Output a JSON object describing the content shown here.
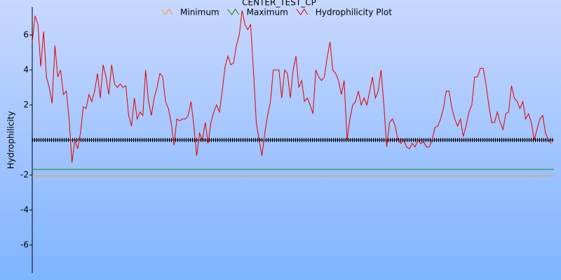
{
  "chart_data": {
    "type": "line",
    "title": "CENTER_TEST_CP",
    "y_label": "Hydrophilicity",
    "ylim": [
      -7.6,
      7.6
    ],
    "yticks": [
      -6,
      -4,
      -2,
      2,
      4,
      6
    ],
    "series": [
      {
        "name": "Minimum",
        "color": "#f0a020",
        "value": -2.05
      },
      {
        "name": "Maximum",
        "color": "#108a10",
        "value": -1.68
      },
      {
        "name": "Hydrophilicity Plot",
        "color": "#e00000",
        "values": [
          5.6,
          7.1,
          6.6,
          4.2,
          6.2,
          3.6,
          3.0,
          2.1,
          5.4,
          3.6,
          4.0,
          2.6,
          2.8,
          1.2,
          -1.3,
          0,
          -0.5,
          0.4,
          1.9,
          1.8,
          2.6,
          2.2,
          2.8,
          3.8,
          2.4,
          4.3,
          3.6,
          2.6,
          4.3,
          3.2,
          3.0,
          3.2,
          3.0,
          3.1,
          1.4,
          0.8,
          2.4,
          1.2,
          1.6,
          1.4,
          4.0,
          2.2,
          1.4,
          2.4,
          3.0,
          3.8,
          3.6,
          2.2,
          1.8,
          1.0,
          -0.3,
          1.2,
          1.1,
          1.2,
          1.2,
          1.4,
          2.2,
          0.8,
          -0.9,
          0.4,
          0,
          1.0,
          -0.2,
          1.0,
          1.6,
          2.0,
          1.6,
          2.8,
          4.2,
          4.8,
          4.3,
          4.4,
          5.4,
          6.0,
          7.4,
          6.6,
          6.3,
          6.6,
          4.0,
          1.0,
          0,
          -0.9,
          0.4,
          1.4,
          2.2,
          4.0,
          4.0,
          4.0,
          2.4,
          4.0,
          3.8,
          2.4,
          4.0,
          4.8,
          3.0,
          3.4,
          2.2,
          2.4,
          2.0,
          1.5,
          4.0,
          3.6,
          3.4,
          3.6,
          4.7,
          5.6,
          4.0,
          3.8,
          3.4,
          2.6,
          3.4,
          0,
          1.2,
          2.0,
          2.2,
          2.8,
          2.0,
          2.4,
          2.0,
          2.8,
          3.6,
          2.4,
          2.8,
          4.0,
          2.0,
          -0.4,
          1.0,
          1.2,
          0.8,
          0,
          -0.2,
          0,
          -0.4,
          -0.5,
          -0.2,
          -0.4,
          0,
          -0.2,
          -0.1,
          -0.4,
          -0.4,
          0,
          0.7,
          0.8,
          1.2,
          1.8,
          2.8,
          2.8,
          1.8,
          1.2,
          0.8,
          1.2,
          0.2,
          0.8,
          1.6,
          2.0,
          3.6,
          3.6,
          4.1,
          4.1,
          3.2,
          2.0,
          1.0,
          1.0,
          1.6,
          1.0,
          0.6,
          1.5,
          1.6,
          3.1,
          2.4,
          2.2,
          1.8,
          2.2,
          1.2,
          1.5,
          1.0,
          0,
          0.6,
          1.2,
          1.4,
          0.4,
          0,
          -0.2
        ]
      }
    ]
  }
}
